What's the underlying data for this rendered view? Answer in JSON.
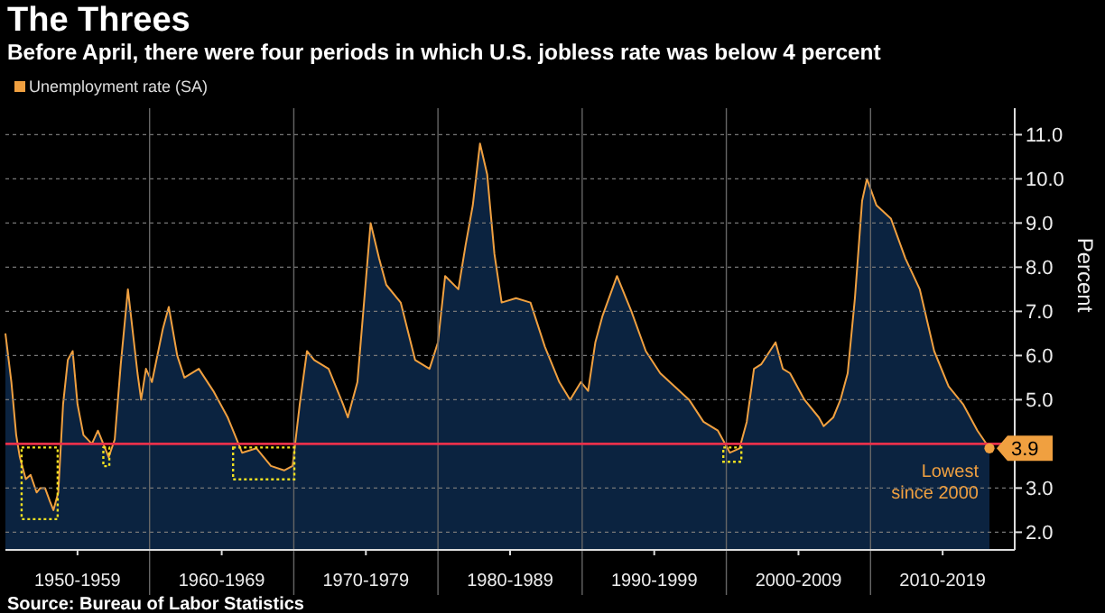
{
  "chart_data": {
    "type": "area",
    "title": "The Threes",
    "subtitle": "Before April, there were four periods in which U.S. jobless rate was below 4 percent",
    "ylabel": "Percent",
    "x": [
      "1950-01",
      "1950-06",
      "1950-10",
      "1951-01",
      "1951-06",
      "1951-10",
      "1952-03",
      "1952-06",
      "1952-10",
      "1953-02",
      "1953-05",
      "1953-09",
      "1954-01",
      "1954-05",
      "1954-09",
      "1955-01",
      "1955-06",
      "1956-01",
      "1956-06",
      "1957-03",
      "1957-08",
      "1958-01",
      "1958-07",
      "1959-03",
      "1959-06",
      "1959-10",
      "1960-03",
      "1960-12",
      "1961-05",
      "1961-12",
      "1962-06",
      "1963-06",
      "1964-06",
      "1965-06",
      "1966-06",
      "1967-06",
      "1968-06",
      "1969-05",
      "1969-12",
      "1970-06",
      "1970-12",
      "1971-06",
      "1972-06",
      "1973-06",
      "1973-10",
      "1974-06",
      "1975-05",
      "1975-12",
      "1976-06",
      "1977-06",
      "1978-06",
      "1979-06",
      "1980-01",
      "1980-07",
      "1981-06",
      "1981-12",
      "1982-06",
      "1982-12",
      "1983-06",
      "1983-12",
      "1984-06",
      "1985-06",
      "1986-06",
      "1987-06",
      "1988-06",
      "1989-03",
      "1989-12",
      "1990-06",
      "1990-12",
      "1991-06",
      "1992-06",
      "1992-12",
      "1993-06",
      "1994-06",
      "1995-06",
      "1996-06",
      "1997-06",
      "1998-06",
      "1999-06",
      "2000-04",
      "2000-12",
      "2001-06",
      "2001-12",
      "2002-06",
      "2003-06",
      "2003-12",
      "2004-06",
      "2005-06",
      "2006-06",
      "2006-10",
      "2007-06",
      "2007-12",
      "2008-06",
      "2008-12",
      "2009-06",
      "2009-10",
      "2010-06",
      "2011-06",
      "2012-06",
      "2013-06",
      "2014-06",
      "2015-06",
      "2016-06",
      "2017-06",
      "2018-04"
    ],
    "series": [
      {
        "name": "Unemployment rate (SA)",
        "color": "#f0a040",
        "values": [
          6.5,
          5.4,
          4.2,
          3.7,
          3.2,
          3.3,
          2.9,
          3.0,
          3.0,
          2.7,
          2.5,
          2.9,
          4.9,
          5.9,
          6.1,
          4.9,
          4.2,
          4.0,
          4.3,
          3.7,
          4.1,
          5.8,
          7.5,
          5.6,
          5.0,
          5.7,
          5.4,
          6.6,
          7.1,
          6.0,
          5.5,
          5.7,
          5.2,
          4.6,
          3.8,
          3.9,
          3.5,
          3.4,
          3.5,
          4.9,
          6.1,
          5.9,
          5.7,
          4.9,
          4.6,
          5.4,
          9.0,
          8.2,
          7.6,
          7.2,
          5.9,
          5.7,
          6.3,
          7.8,
          7.5,
          8.5,
          9.4,
          10.8,
          10.1,
          8.3,
          7.2,
          7.3,
          7.2,
          6.2,
          5.4,
          5.0,
          5.4,
          5.2,
          6.3,
          6.9,
          7.8,
          7.4,
          7.0,
          6.1,
          5.6,
          5.3,
          5.0,
          4.5,
          4.3,
          3.8,
          3.9,
          4.5,
          5.7,
          5.8,
          6.3,
          5.7,
          5.6,
          5.0,
          4.6,
          4.4,
          4.6,
          5.0,
          5.6,
          7.3,
          9.5,
          10.0,
          9.4,
          9.1,
          8.2,
          7.5,
          6.1,
          5.3,
          4.9,
          4.3,
          3.9
        ],
        "value_labels": [
          null,
          null,
          null,
          null,
          null,
          null,
          null,
          null,
          null,
          null,
          null,
          null,
          null,
          null,
          null,
          null,
          null,
          null,
          null,
          null,
          null,
          null,
          null,
          null,
          null,
          null,
          null,
          null,
          null,
          null,
          null,
          null,
          null,
          null,
          null,
          null,
          null,
          null,
          null,
          null,
          null,
          null,
          null,
          null,
          null,
          null,
          null,
          null,
          null,
          null,
          null,
          null,
          null,
          null,
          null,
          null,
          null,
          null,
          null,
          null,
          null,
          null,
          null,
          null,
          null,
          null,
          null,
          null,
          null,
          null,
          null,
          null,
          null,
          null,
          null,
          null,
          null,
          null,
          null,
          null,
          null,
          null,
          null,
          null,
          null,
          null,
          null,
          null,
          null,
          null,
          null,
          null,
          null,
          null,
          null,
          null,
          null,
          null,
          null,
          null,
          null,
          null,
          null,
          null,
          "3.9"
        ]
      }
    ],
    "xlim": [
      "1950-01",
      "2020-01"
    ],
    "xticks": [
      {
        "value": "1955-01",
        "label": "1950-1959"
      },
      {
        "value": "1960-01",
        "label": null
      },
      {
        "value": "1965-01",
        "label": "1960-1969"
      },
      {
        "value": "1970-01",
        "label": null
      },
      {
        "value": "1975-01",
        "label": "1970-1979"
      },
      {
        "value": "1980-01",
        "label": null
      },
      {
        "value": "1985-01",
        "label": "1980-1989"
      },
      {
        "value": "1990-01",
        "label": null
      },
      {
        "value": "1995-01",
        "label": "1990-1999"
      },
      {
        "value": "2000-01",
        "label": null
      },
      {
        "value": "2005-01",
        "label": "2000-2009"
      },
      {
        "value": "2010-01",
        "label": null
      },
      {
        "value": "2015-01",
        "label": "2010-2019"
      }
    ],
    "ylim": [
      1.6,
      11.6
    ],
    "yticks": [
      {
        "value": 2,
        "label": "2.0"
      },
      {
        "value": 3,
        "label": "3.0"
      },
      {
        "value": 4,
        "label": null
      },
      {
        "value": 5,
        "label": "5.0"
      },
      {
        "value": 6,
        "label": "6.0"
      },
      {
        "value": 7,
        "label": "7.0"
      },
      {
        "value": 8,
        "label": "8.0"
      },
      {
        "value": 9,
        "label": "9.0"
      },
      {
        "value": 10,
        "label": "10.0"
      },
      {
        "value": 11,
        "label": "11.0"
      }
    ],
    "grid": true,
    "legend": "top left",
    "ref_lines": [
      {
        "axis": "y",
        "value": 4,
        "color": "#e8304a"
      }
    ],
    "annotations": [
      {
        "text": "Lowest since 2000",
        "x": "2018-04",
        "y": 3.9
      },
      "Source: Bureau of Labor Statistics"
    ]
  }
}
